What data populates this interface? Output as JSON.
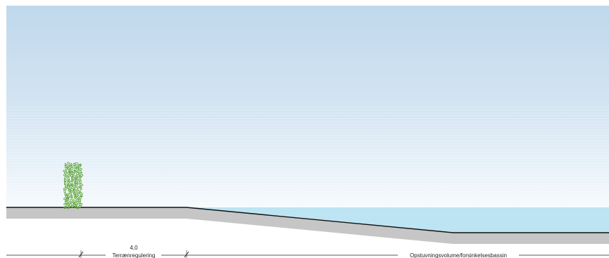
{
  "diagram": {
    "dimension_value": "4,0",
    "labels": {
      "left_zone": "Terrænregulering",
      "right_zone": "Opstuvningsvolume/forsinkelsesbassin"
    },
    "colors": {
      "sky_top": "#bfd8ec",
      "sky_bottom": "#f6fafd",
      "water": "#bde4f2",
      "ground_fill": "#c6c6c6",
      "ground_line": "#111111",
      "hedge_stroke": "#4f9a2a",
      "hedge_fill": "#b8dc8e",
      "dimension_line": "#222222"
    },
    "icons": {
      "hedge": "hedge-icon",
      "dimension_tick": "dimension-tick-icon"
    }
  }
}
